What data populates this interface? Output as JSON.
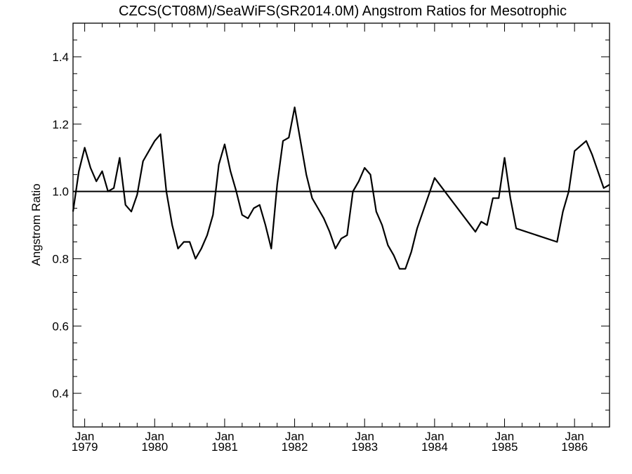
{
  "chart_data": {
    "type": "line",
    "title": "CZCS(CT08M)/SeaWiFS(SR2014.0M)  Angstrom Ratios for Mesotrophic",
    "xlabel": "",
    "ylabel": "Angstrom Ratio",
    "xlim": [
      "1978-11",
      "1986-07"
    ],
    "ylim": [
      0.3,
      1.5
    ],
    "x_ticks": [
      {
        "month": "Jan",
        "year": "1979"
      },
      {
        "month": "Jan",
        "year": "1980"
      },
      {
        "month": "Jan",
        "year": "1981"
      },
      {
        "month": "Jan",
        "year": "1982"
      },
      {
        "month": "Jan",
        "year": "1983"
      },
      {
        "month": "Jan",
        "year": "1984"
      },
      {
        "month": "Jan",
        "year": "1985"
      },
      {
        "month": "Jan",
        "year": "1986"
      }
    ],
    "y_ticks": [
      "0.4",
      "0.6",
      "0.8",
      "1.0",
      "1.2",
      "1.4"
    ],
    "reference_line": 1.0,
    "grid": false,
    "series": [
      {
        "color": "#000000",
        "x": [
          "1978-11",
          "1978-12",
          "1979-01",
          "1979-02",
          "1979-03",
          "1979-04",
          "1979-05",
          "1979-06",
          "1979-07",
          "1979-08",
          "1979-09",
          "1979-10",
          "1979-11",
          "1979-12",
          "1980-01",
          "1980-02",
          "1980-03",
          "1980-04",
          "1980-05",
          "1980-06",
          "1980-07",
          "1980-08",
          "1980-09",
          "1980-10",
          "1980-11",
          "1980-12",
          "1981-01",
          "1981-02",
          "1981-03",
          "1981-04",
          "1981-05",
          "1981-06",
          "1981-07",
          "1981-08",
          "1981-09",
          "1981-10",
          "1981-11",
          "1981-12",
          "1982-01",
          "1982-02",
          "1982-03",
          "1982-04",
          "1982-05",
          "1982-06",
          "1982-07",
          "1982-08",
          "1982-09",
          "1982-10",
          "1982-11",
          "1982-12",
          "1983-01",
          "1983-02",
          "1983-03",
          "1983-04",
          "1983-05",
          "1983-06",
          "1983-07",
          "1983-08",
          "1983-09",
          "1983-10",
          "1984-01",
          "1984-08",
          "1984-09",
          "1984-10",
          "1984-11",
          "1984-12",
          "1985-01",
          "1985-02",
          "1985-03",
          "1985-10",
          "1985-11",
          "1985-12",
          "1986-01",
          "1986-03",
          "1986-04",
          "1986-05",
          "1986-06",
          "1986-07"
        ],
        "y": [
          0.94,
          1.06,
          1.13,
          1.07,
          1.03,
          1.06,
          1.0,
          1.01,
          1.1,
          0.96,
          0.94,
          0.99,
          1.09,
          1.12,
          1.15,
          1.17,
          1.0,
          0.9,
          0.83,
          0.85,
          0.85,
          0.8,
          0.83,
          0.87,
          0.93,
          1.08,
          1.14,
          1.06,
          1.0,
          0.93,
          0.92,
          0.95,
          0.96,
          0.9,
          0.83,
          1.02,
          1.15,
          1.16,
          1.25,
          1.15,
          1.05,
          0.98,
          0.95,
          0.92,
          0.88,
          0.83,
          0.86,
          0.87,
          1.0,
          1.03,
          1.07,
          1.05,
          0.94,
          0.9,
          0.84,
          0.81,
          0.77,
          0.77,
          0.82,
          0.89,
          1.04,
          0.88,
          0.91,
          0.9,
          0.98,
          0.98,
          1.1,
          0.98,
          0.89,
          0.85,
          0.94,
          1.0,
          1.12,
          1.15,
          1.11,
          1.06,
          1.01,
          1.02
        ]
      }
    ]
  }
}
